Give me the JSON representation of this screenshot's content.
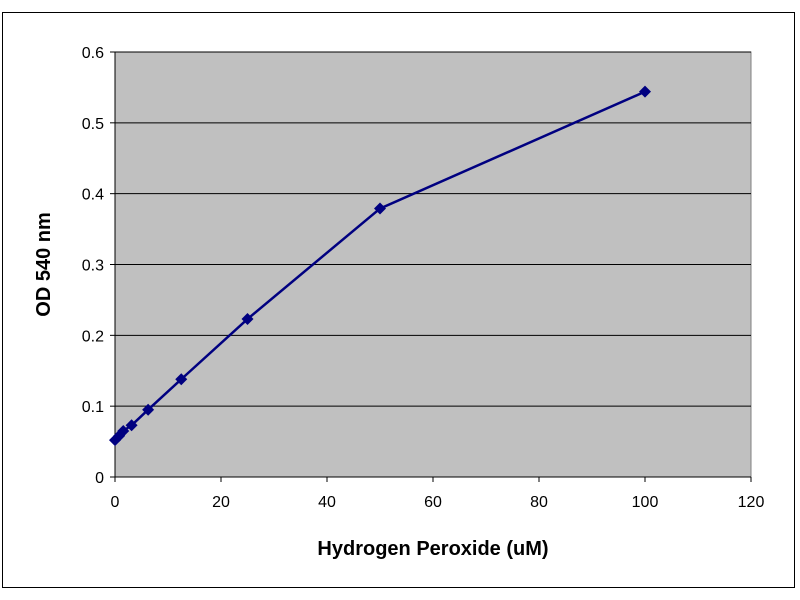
{
  "chart_data": {
    "type": "line",
    "title": "",
    "xlabel": "Hydrogen Peroxide (uM)",
    "ylabel": "OD 540 nm",
    "xlim": [
      0,
      120
    ],
    "ylim": [
      0,
      0.6
    ],
    "x_ticks": [
      "0",
      "20",
      "40",
      "60",
      "80",
      "100",
      "120"
    ],
    "y_ticks": [
      "0",
      "0.1",
      "0.2",
      "0.3",
      "0.4",
      "0.5",
      "0.6"
    ],
    "grid": "horizontal",
    "legend": "none",
    "series": [
      {
        "marker": "diamond",
        "color": "#000080",
        "x": [
          0,
          0.78,
          1.56,
          3.13,
          6.25,
          12.5,
          25,
          50,
          100
        ],
        "y": [
          0.052,
          0.058,
          0.065,
          0.073,
          0.095,
          0.138,
          0.223,
          0.379,
          0.544
        ]
      }
    ],
    "colors": {
      "plot_background": "#c0c0c0",
      "gridline": "#000000",
      "series_line": "#000080"
    }
  }
}
